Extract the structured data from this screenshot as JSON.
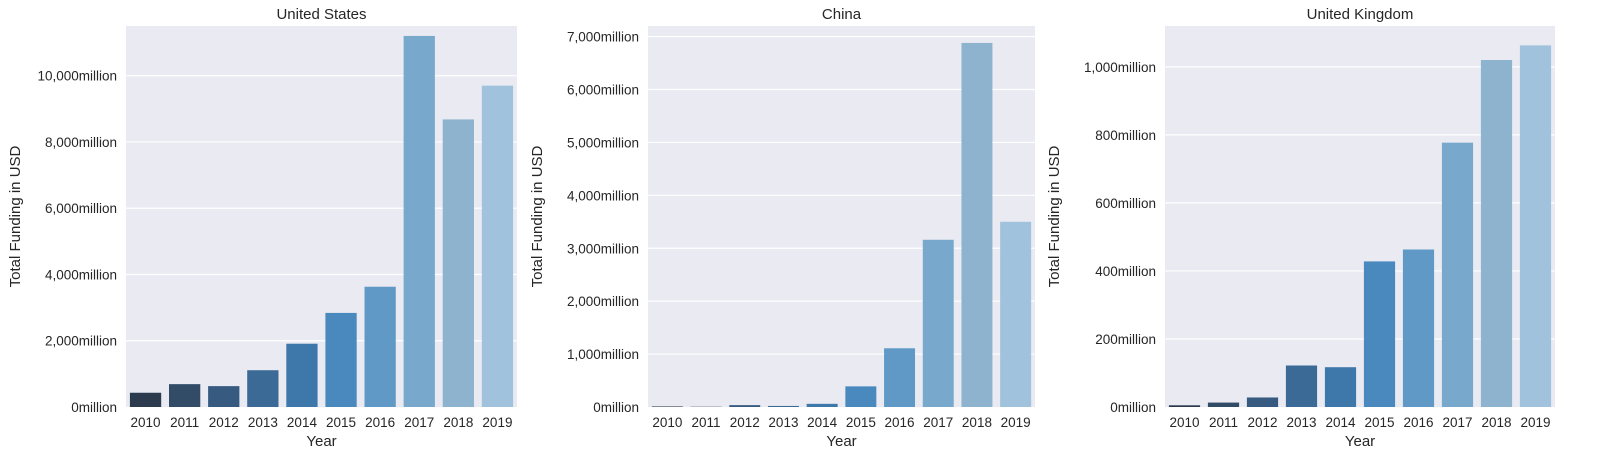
{
  "chart_data": [
    {
      "type": "bar",
      "title": "United States",
      "xlabel": "Year",
      "ylabel": "Total Funding in USD",
      "categories": [
        "2010",
        "2011",
        "2012",
        "2013",
        "2014",
        "2015",
        "2016",
        "2017",
        "2018",
        "2019"
      ],
      "values": [
        430,
        690,
        630,
        1110,
        1910,
        2840,
        3630,
        11200,
        8680,
        9700
      ],
      "ylim": [
        0,
        11500
      ],
      "yticks": [
        0,
        2000,
        4000,
        6000,
        8000,
        10000
      ],
      "ytick_labels": [
        "0million",
        "2,000million",
        "4,000million",
        "6,000million",
        "8,000million",
        "10,000million"
      ],
      "colors": [
        "#2b3a4d",
        "#324b66",
        "#375a80",
        "#3b6a96",
        "#3e78aa",
        "#4a89be",
        "#6199c6",
        "#78a8cb",
        "#8eb3cf",
        "#a0c2dc"
      ],
      "grid": true
    },
    {
      "type": "bar",
      "title": "China",
      "xlabel": "Year",
      "ylabel": "Total Funding in USD",
      "categories": [
        "2010",
        "2011",
        "2012",
        "2013",
        "2014",
        "2015",
        "2016",
        "2017",
        "2018",
        "2019"
      ],
      "values": [
        10,
        5,
        35,
        20,
        60,
        390,
        1110,
        3160,
        6880,
        3500
      ],
      "ylim": [
        0,
        7200
      ],
      "yticks": [
        0,
        1000,
        2000,
        3000,
        4000,
        5000,
        6000,
        7000
      ],
      "ytick_labels": [
        "0million",
        "1,000million",
        "2,000million",
        "3,000million",
        "4,000million",
        "5,000million",
        "6,000million",
        "7,000million"
      ],
      "colors": [
        "#2b3a4d",
        "#324b66",
        "#375a80",
        "#3b6a96",
        "#3e78aa",
        "#4a89be",
        "#6199c6",
        "#78a8cb",
        "#8eb3cf",
        "#a0c2dc"
      ],
      "grid": true
    },
    {
      "type": "bar",
      "title": "United Kingdom",
      "xlabel": "Year",
      "ylabel": "Total Funding in USD",
      "categories": [
        "2010",
        "2011",
        "2012",
        "2013",
        "2014",
        "2015",
        "2016",
        "2017",
        "2018",
        "2019"
      ],
      "values": [
        5,
        13,
        28,
        122,
        117,
        428,
        463,
        777,
        1020,
        1063
      ],
      "ylim": [
        0,
        1120
      ],
      "yticks": [
        0,
        200,
        400,
        600,
        800,
        1000
      ],
      "ytick_labels": [
        "0million",
        "200million",
        "400million",
        "600million",
        "800million",
        "1,000million"
      ],
      "colors": [
        "#2b3a4d",
        "#324b66",
        "#375a80",
        "#3b6a96",
        "#3e78aa",
        "#4a89be",
        "#6199c6",
        "#78a8cb",
        "#8eb3cf",
        "#a0c2dc"
      ],
      "grid": true
    }
  ]
}
